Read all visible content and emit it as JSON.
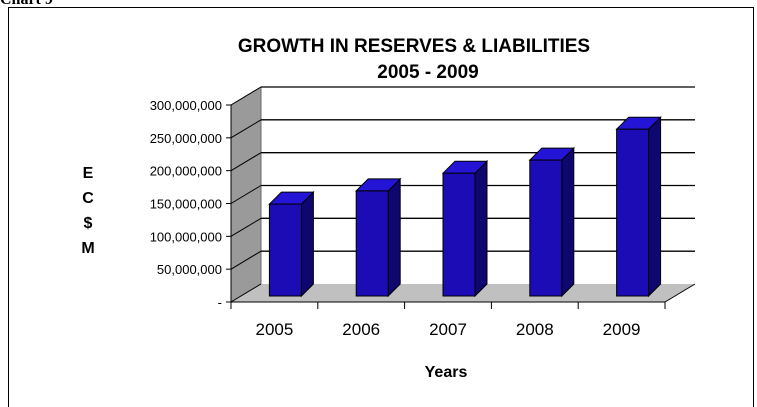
{
  "page_label": "Chart 9",
  "chart_data": {
    "type": "bar",
    "title_line1": "GROWTH IN RESERVES & LIABILITIES",
    "title_line2": "2005 - 2009",
    "ylabel_letters": [
      "E",
      "C",
      "$",
      "M"
    ],
    "xlabel": "Years",
    "categories": [
      "2005",
      "2006",
      "2007",
      "2008",
      "2009"
    ],
    "values": [
      140000000,
      160000000,
      187000000,
      207000000,
      254000000
    ],
    "ylim": [
      0,
      300000000
    ],
    "yticks": [
      0,
      50000000,
      100000000,
      150000000,
      200000000,
      250000000,
      300000000
    ],
    "ytick_labels": [
      "-",
      "50,000,000",
      "100,000,000",
      "150,000,000",
      "200,000,000",
      "250,000,000",
      "300,000,000"
    ],
    "grid": true,
    "three_d": true,
    "colors": {
      "bar_front": "#1c0cb5",
      "bar_side": "#0f0770",
      "bar_top": "#2414d6",
      "wall": "#9a9a9a",
      "floor": "#c0c0c0",
      "gridline": "#000000"
    }
  }
}
